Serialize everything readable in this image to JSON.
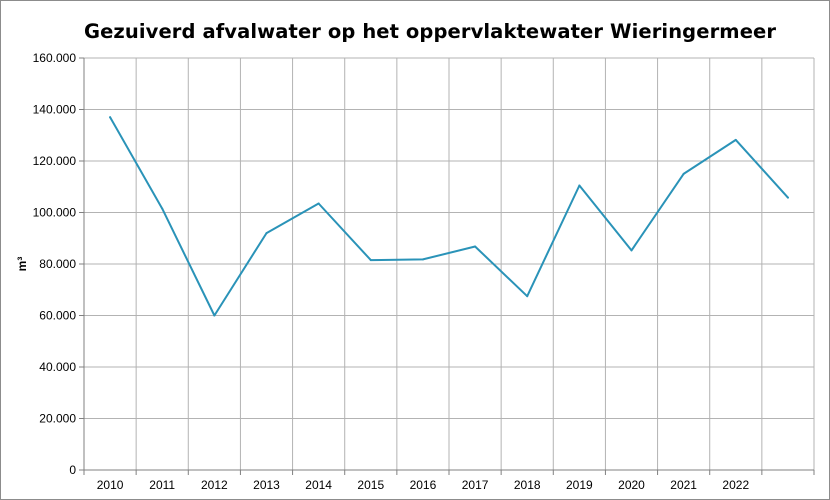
{
  "chart_data": {
    "type": "line",
    "title": "Gezuiverd afvalwater op het oppervlaktewater Wieringermeer",
    "xlabel": "",
    "ylabel": "m³",
    "categories": [
      "2010",
      "2011",
      "2012",
      "2013",
      "2014",
      "2015",
      "2016",
      "2017",
      "2018",
      "2019",
      "2020",
      "2021",
      "2022",
      ""
    ],
    "series": [
      {
        "values": [
          137000,
          101500,
          60000,
          92000,
          103500,
          81500,
          81800,
          86800,
          67500,
          110500,
          85300,
          115000,
          128200,
          105800
        ]
      }
    ],
    "ylim": [
      0,
      160000
    ],
    "yticks": [
      0,
      20000,
      40000,
      60000,
      80000,
      100000,
      120000,
      140000,
      160000
    ],
    "ytick_labels": [
      "0",
      "20.000",
      "40.000",
      "60.000",
      "80.000",
      "100.000",
      "120.000",
      "140.000",
      "160.000"
    ],
    "grid": true,
    "line_color": "#2a93b8",
    "grid_color": "#b3b3b3"
  }
}
